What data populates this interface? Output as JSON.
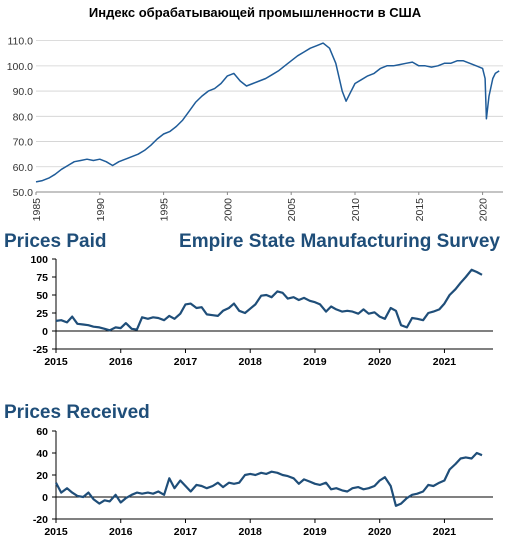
{
  "chart_data": [
    {
      "type": "line",
      "title": "Индекс обрабатывающей промышленности в США",
      "xlabel": "",
      "ylabel": "",
      "xlim": [
        1985,
        2021.6
      ],
      "ylim": [
        50,
        115
      ],
      "y_ticks": [
        "50.0",
        "60.0",
        "70.0",
        "80.0",
        "90.0",
        "100.0",
        "110.0"
      ],
      "y_tick_values": [
        50,
        60,
        70,
        80,
        90,
        100,
        110
      ],
      "x_ticks": [
        "1985",
        "1990",
        "1995",
        "2000",
        "2005",
        "2010",
        "2015",
        "2020"
      ],
      "x_tick_values": [
        1985,
        1990,
        1995,
        2000,
        2005,
        2010,
        2015,
        2020
      ],
      "grid": true,
      "color": "#1f5c99",
      "series": [
        {
          "x": [
            1985,
            1985.5,
            1986,
            1986.5,
            1987,
            1987.5,
            1988,
            1988.5,
            1989,
            1989.5,
            1990,
            1990.5,
            1991,
            1991.5,
            1992,
            1992.5,
            1993,
            1993.5,
            1994,
            1994.5,
            1995,
            1995.5,
            1996,
            1996.5,
            1997,
            1997.5,
            1998,
            1998.5,
            1999,
            1999.5,
            2000,
            2000.5,
            2001,
            2001.5,
            2002,
            2002.5,
            2003,
            2003.5,
            2004,
            2004.5,
            2005,
            2005.5,
            2006,
            2006.5,
            2007,
            2007.5,
            2008,
            2008.5,
            2009,
            2009.3,
            2009.6,
            2010,
            2010.5,
            2011,
            2011.5,
            2012,
            2012.5,
            2013,
            2013.5,
            2014,
            2014.5,
            2015,
            2015.5,
            2016,
            2016.5,
            2017,
            2017.5,
            2018,
            2018.5,
            2019,
            2019.5,
            2020,
            2020.2,
            2020.3,
            2020.5,
            2020.8,
            2021,
            2021.3
          ],
          "y": [
            54,
            54.5,
            55.5,
            57,
            59,
            60.5,
            62,
            62.5,
            63,
            62.5,
            63,
            62,
            60.5,
            62,
            63,
            64,
            65,
            66.5,
            68.5,
            71,
            73,
            74,
            76,
            78.5,
            82,
            85.5,
            88,
            90,
            91,
            93,
            96,
            97,
            94,
            92,
            93,
            94,
            95,
            96.5,
            98,
            100,
            102,
            104,
            105.5,
            107,
            108,
            109,
            107,
            101,
            90,
            86,
            89,
            93,
            94.5,
            96,
            97,
            99,
            100,
            100,
            100.5,
            101,
            101.5,
            100,
            100,
            99.5,
            100,
            101,
            101,
            102,
            102,
            101,
            100,
            99,
            95,
            79,
            88,
            95,
            97,
            98
          ]
        }
      ]
    },
    {
      "type": "line",
      "title": "Prices Paid",
      "subtitle": "Empire State Manufacturing Survey",
      "xlabel": "",
      "ylabel": "",
      "xlim": [
        2015,
        2021.75
      ],
      "ylim": [
        -25,
        100
      ],
      "y_ticks": [
        "100",
        "75",
        "50",
        "25",
        "0",
        "-25"
      ],
      "y_tick_values": [
        100,
        75,
        50,
        25,
        0,
        -25
      ],
      "x_ticks": [
        "2015",
        "2016",
        "2017",
        "2018",
        "2019",
        "2020",
        "2021"
      ],
      "x_tick_values": [
        2015,
        2016,
        2017,
        2018,
        2019,
        2020,
        2021
      ],
      "grid": false,
      "color": "#1f4e79",
      "series": [
        {
          "x": [
            2015,
            2015.08,
            2015.17,
            2015.25,
            2015.33,
            2015.42,
            2015.5,
            2015.58,
            2015.67,
            2015.75,
            2015.83,
            2015.92,
            2016,
            2016.08,
            2016.17,
            2016.25,
            2016.33,
            2016.42,
            2016.5,
            2016.58,
            2016.67,
            2016.75,
            2016.83,
            2016.92,
            2017,
            2017.08,
            2017.17,
            2017.25,
            2017.33,
            2017.42,
            2017.5,
            2017.58,
            2017.67,
            2017.75,
            2017.83,
            2017.92,
            2018,
            2018.08,
            2018.17,
            2018.25,
            2018.33,
            2018.42,
            2018.5,
            2018.58,
            2018.67,
            2018.75,
            2018.83,
            2018.92,
            2019,
            2019.08,
            2019.17,
            2019.25,
            2019.33,
            2019.42,
            2019.5,
            2019.58,
            2019.67,
            2019.75,
            2019.83,
            2019.92,
            2020,
            2020.08,
            2020.17,
            2020.25,
            2020.33,
            2020.42,
            2020.5,
            2020.58,
            2020.67,
            2020.75,
            2020.83,
            2020.92,
            2021,
            2021.08,
            2021.17,
            2021.25,
            2021.33,
            2021.42,
            2021.5,
            2021.58
          ],
          "y": [
            14,
            15,
            12,
            20,
            10,
            9,
            8,
            6,
            5,
            3,
            1,
            5,
            4,
            11,
            3,
            2,
            19,
            17,
            19,
            18,
            15,
            21,
            17,
            24,
            37,
            38,
            32,
            33,
            23,
            22,
            21,
            28,
            32,
            38,
            28,
            25,
            31,
            37,
            49,
            50,
            47,
            55,
            53,
            45,
            47,
            43,
            46,
            42,
            40,
            37,
            27,
            34,
            30,
            27,
            28,
            27,
            24,
            30,
            24,
            26,
            20,
            17,
            32,
            28,
            8,
            5,
            18,
            17,
            15,
            25,
            27,
            30,
            38,
            50,
            58,
            67,
            75,
            85,
            82,
            78
          ]
        }
      ]
    },
    {
      "type": "line",
      "title": "Prices Received",
      "xlabel": "",
      "ylabel": "",
      "xlim": [
        2015,
        2021.75
      ],
      "ylim": [
        -20,
        60
      ],
      "y_ticks": [
        "60",
        "40",
        "20",
        "0",
        "-20"
      ],
      "y_tick_values": [
        60,
        40,
        20,
        0,
        -20
      ],
      "x_ticks": [
        "2015",
        "2016",
        "2017",
        "2018",
        "2019",
        "2020",
        "2021"
      ],
      "x_tick_values": [
        2015,
        2016,
        2017,
        2018,
        2019,
        2020,
        2021
      ],
      "grid": false,
      "color": "#1f4e79",
      "series": [
        {
          "x": [
            2015,
            2015.08,
            2015.17,
            2015.25,
            2015.33,
            2015.42,
            2015.5,
            2015.58,
            2015.67,
            2015.75,
            2015.83,
            2015.92,
            2016,
            2016.08,
            2016.17,
            2016.25,
            2016.33,
            2016.42,
            2016.5,
            2016.58,
            2016.67,
            2016.75,
            2016.83,
            2016.92,
            2017,
            2017.08,
            2017.17,
            2017.25,
            2017.33,
            2017.42,
            2017.5,
            2017.58,
            2017.67,
            2017.75,
            2017.83,
            2017.92,
            2018,
            2018.08,
            2018.17,
            2018.25,
            2018.33,
            2018.42,
            2018.5,
            2018.58,
            2018.67,
            2018.75,
            2018.83,
            2018.92,
            2019,
            2019.08,
            2019.17,
            2019.25,
            2019.33,
            2019.42,
            2019.5,
            2019.58,
            2019.67,
            2019.75,
            2019.83,
            2019.92,
            2020,
            2020.08,
            2020.17,
            2020.25,
            2020.33,
            2020.42,
            2020.5,
            2020.58,
            2020.67,
            2020.75,
            2020.83,
            2020.92,
            2021,
            2021.08,
            2021.17,
            2021.25,
            2021.33,
            2021.42,
            2021.5,
            2021.58
          ],
          "y": [
            13,
            4,
            8,
            4,
            1,
            0,
            4,
            -2,
            -6,
            -3,
            -4,
            2,
            -5,
            -1,
            2,
            4,
            3,
            4,
            3,
            5,
            2,
            17,
            8,
            15,
            10,
            5,
            11,
            10,
            8,
            10,
            13,
            9,
            13,
            12,
            13,
            20,
            21,
            20,
            22,
            21,
            23,
            22,
            20,
            19,
            17,
            12,
            16,
            14,
            12,
            11,
            13,
            7,
            8,
            6,
            5,
            8,
            9,
            7,
            8,
            10,
            15,
            18,
            10,
            -8,
            -6,
            -1,
            2,
            3,
            5,
            11,
            10,
            13,
            15,
            25,
            30,
            35,
            36,
            35,
            40,
            38
          ]
        }
      ]
    }
  ]
}
